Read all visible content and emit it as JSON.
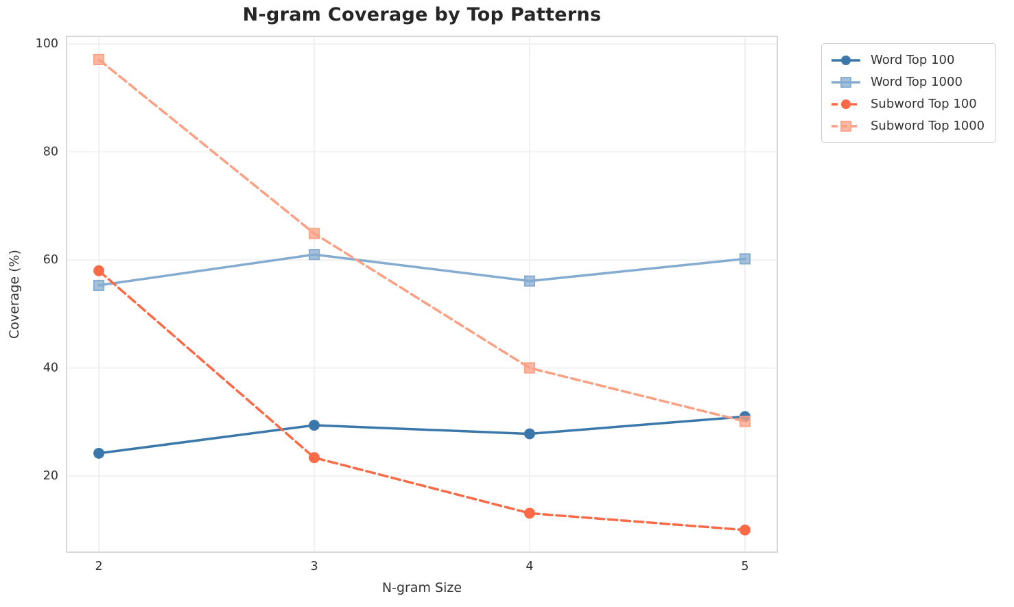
{
  "chart_data": {
    "type": "line",
    "title": "N-gram Coverage by Top Patterns",
    "xlabel": "N-gram Size",
    "ylabel": "Coverage (%)",
    "x": [
      2,
      3,
      4,
      5
    ],
    "xticks": [
      2,
      3,
      4,
      5
    ],
    "yticks": [
      20,
      40,
      60,
      80,
      100
    ],
    "xlim": [
      1.85,
      5.15
    ],
    "ylim": [
      5.9,
      101.4
    ],
    "grid": true,
    "legend_position": "upper right, outside plot",
    "series": [
      {
        "name": "Word Top 100",
        "color": "#3a77ab",
        "linestyle": "solid",
        "marker": "circle",
        "values": [
          24.2,
          29.4,
          27.8,
          31.0
        ]
      },
      {
        "name": "Word Top 1000",
        "color": "#84abd0",
        "linestyle": "solid",
        "marker": "square",
        "values": [
          55.3,
          61.0,
          56.1,
          60.2
        ]
      },
      {
        "name": "Subword Top 100",
        "color": "#fa6a47",
        "linestyle": "dashed",
        "marker": "circle",
        "values": [
          58.0,
          23.4,
          13.1,
          10.0
        ]
      },
      {
        "name": "Subword Top 1000",
        "color": "#fba083",
        "linestyle": "dashed",
        "marker": "square",
        "values": [
          97.1,
          64.9,
          40.0,
          30.1
        ]
      }
    ],
    "style": {
      "grid_color": "#e9e9e9",
      "spine_color": "#cccccc",
      "tick_label_color": "#333333",
      "title_color": "#262626"
    }
  }
}
